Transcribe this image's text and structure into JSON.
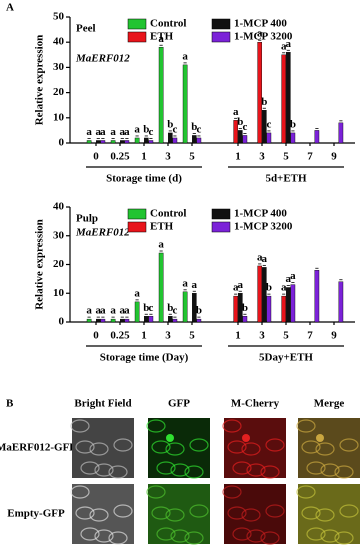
{
  "panel_a_label": "A",
  "chart_data": [
    {
      "type": "bar",
      "panel": "Peel",
      "gene": "MaERF012",
      "y_label": "Relative expression",
      "categories": [
        "0",
        "0.25",
        "1",
        "3",
        "5",
        "1",
        "3",
        "5",
        "7",
        "9"
      ],
      "x_group_labels": [
        "Storage time (d)",
        "5d+ETH"
      ],
      "series": [
        {
          "name": "Control",
          "color": "#22c431",
          "values": [
            1,
            1,
            2,
            38,
            31,
            null,
            null,
            null,
            null,
            null
          ],
          "letters": [
            "a",
            "a",
            "a",
            "a",
            "a",
            null,
            null,
            null,
            null,
            null
          ]
        },
        {
          "name": "ETH",
          "color": "#e8141b",
          "values": [
            null,
            null,
            null,
            null,
            null,
            9,
            40,
            35,
            null,
            null
          ],
          "letters": [
            null,
            null,
            null,
            null,
            null,
            "a",
            "a",
            "a",
            null,
            null
          ]
        },
        {
          "name": "1-MCP 400",
          "color": "#111111",
          "values": [
            1,
            1,
            2,
            4,
            3,
            5,
            13,
            36,
            null,
            null
          ],
          "letters": [
            "a",
            "a",
            "b",
            "b",
            "b",
            "b",
            "b",
            "a",
            null,
            null
          ]
        },
        {
          "name": "1-MCP 3200",
          "color": "#7b22d8",
          "values": [
            1,
            1,
            1,
            2,
            2,
            3,
            4,
            4,
            5,
            8
          ],
          "letters": [
            "a",
            "a",
            "c",
            "c",
            "c",
            "c",
            "c",
            "b",
            null,
            null
          ]
        }
      ],
      "ylim": [
        0,
        50
      ],
      "yticks": [
        0,
        10,
        20,
        30,
        40,
        50
      ]
    },
    {
      "type": "bar",
      "panel": "Pulp",
      "gene": "MaERF012",
      "y_label": "Relative expression",
      "categories": [
        "0",
        "0.25",
        "1",
        "3",
        "5",
        "1",
        "3",
        "5",
        "7",
        "9"
      ],
      "x_group_labels": [
        "Storage time (Day)",
        "5Day+ETH"
      ],
      "series": [
        {
          "name": "Control",
          "color": "#22c431",
          "values": [
            1,
            1,
            7,
            24,
            10.5,
            null,
            null,
            null,
            null,
            null
          ],
          "letters": [
            "a",
            "a",
            "a",
            "a",
            "a",
            null,
            null,
            null,
            null,
            null
          ]
        },
        {
          "name": "ETH",
          "color": "#e8141b",
          "values": [
            null,
            null,
            null,
            null,
            null,
            9,
            19.5,
            9,
            null,
            null
          ],
          "letters": [
            null,
            null,
            null,
            null,
            null,
            "a",
            "a",
            "a",
            null,
            null
          ]
        },
        {
          "name": "1-MCP 400",
          "color": "#111111",
          "values": [
            1,
            1,
            2,
            2,
            10,
            10,
            19,
            12,
            null,
            null
          ],
          "letters": [
            "a",
            "a",
            "b",
            "b",
            "a",
            "a",
            "a",
            "a",
            null,
            null
          ]
        },
        {
          "name": "1-MCP 3200",
          "color": "#7b22d8",
          "values": [
            1,
            1,
            2,
            1,
            1,
            2,
            9,
            13,
            18,
            14
          ],
          "letters": [
            "a",
            "a",
            "c",
            "c",
            "b",
            "b",
            "b",
            "a",
            null,
            null
          ]
        }
      ],
      "ylim": [
        0,
        40
      ],
      "yticks": [
        0,
        10,
        20,
        30,
        40
      ]
    }
  ],
  "panel_b": {
    "label": "B",
    "columns": [
      "Bright Field",
      "GFP",
      "M-Cherry",
      "Merge"
    ],
    "rows": [
      "MaERF012-GFP",
      "Empty-GFP"
    ]
  }
}
